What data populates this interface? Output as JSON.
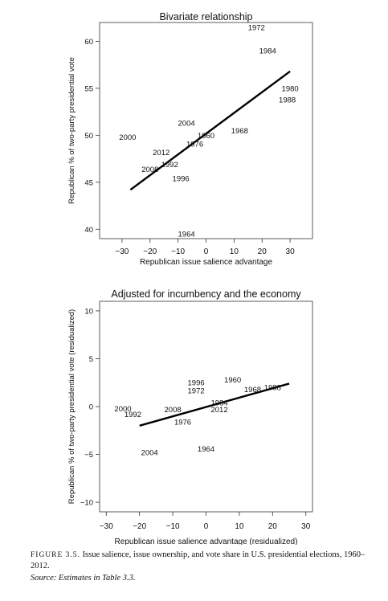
{
  "chart_data": [
    {
      "type": "scatter",
      "title": "Bivariate relationship",
      "xlabel": "Republican issue salience advantage",
      "ylabel": "Republican % of two-party presidential vote",
      "xlim": [
        -38,
        38
      ],
      "ylim": [
        39,
        62
      ],
      "xticks": [
        -30,
        -20,
        -10,
        0,
        10,
        20,
        30
      ],
      "xtick_labels": [
        "−30",
        "−20",
        "−10",
        "0",
        "10",
        "20",
        "30"
      ],
      "yticks": [
        40,
        45,
        50,
        55,
        60
      ],
      "ytick_labels": [
        "40",
        "45",
        "50",
        "55",
        "60"
      ],
      "grid": false,
      "points": [
        {
          "label": "1972",
          "x": 18,
          "y": 61.5
        },
        {
          "label": "1984",
          "x": 22,
          "y": 59.0
        },
        {
          "label": "1980",
          "x": 30,
          "y": 55.0
        },
        {
          "label": "1988",
          "x": 29,
          "y": 53.8
        },
        {
          "label": "2004",
          "x": -7,
          "y": 51.3
        },
        {
          "label": "1968",
          "x": 12,
          "y": 50.5
        },
        {
          "label": "1960",
          "x": 0,
          "y": 50.0
        },
        {
          "label": "1976",
          "x": -4,
          "y": 49.1
        },
        {
          "label": "2000",
          "x": -28,
          "y": 49.8
        },
        {
          "label": "2012",
          "x": -16,
          "y": 48.2
        },
        {
          "label": "1992",
          "x": -13,
          "y": 46.9
        },
        {
          "label": "2008",
          "x": -20,
          "y": 46.4
        },
        {
          "label": "1996",
          "x": -9,
          "y": 45.4
        },
        {
          "label": "1964",
          "x": -7,
          "y": 39.5
        }
      ],
      "fit_line": {
        "x": [
          -27,
          30
        ],
        "y": [
          44.2,
          56.8
        ]
      }
    },
    {
      "type": "scatter",
      "title": "Adjusted for incumbency and the economy",
      "xlabel": "Republican issue salience advantage (residualized)",
      "ylabel": "Republican % of two-party presidential vote (residualized)",
      "xlim": [
        -32,
        32
      ],
      "ylim": [
        -11,
        11
      ],
      "xticks": [
        -30,
        -20,
        -10,
        0,
        10,
        20,
        30
      ],
      "xtick_labels": [
        "−30",
        "−20",
        "−10",
        "0",
        "10",
        "20",
        "30"
      ],
      "yticks": [
        -10,
        -5,
        0,
        5,
        10
      ],
      "ytick_labels": [
        "−10",
        "−5",
        "0",
        "5",
        "10"
      ],
      "grid": false,
      "points": [
        {
          "label": "1996",
          "x": -3,
          "y": 2.5
        },
        {
          "label": "1972",
          "x": -3,
          "y": 1.7
        },
        {
          "label": "1960",
          "x": 8,
          "y": 2.8
        },
        {
          "label": "1968",
          "x": 14,
          "y": 1.8
        },
        {
          "label": "1988",
          "x": 20,
          "y": 2.0
        },
        {
          "label": "1984",
          "x": 4,
          "y": 0.4
        },
        {
          "label": "2012",
          "x": 4,
          "y": -0.3
        },
        {
          "label": "2000",
          "x": -25,
          "y": -0.2
        },
        {
          "label": "1992",
          "x": -22,
          "y": -0.8
        },
        {
          "label": "2008",
          "x": -10,
          "y": -0.3
        },
        {
          "label": "1976",
          "x": -7,
          "y": -1.6
        },
        {
          "label": "2004",
          "x": -17,
          "y": -4.8
        },
        {
          "label": "1964",
          "x": 0,
          "y": -4.4
        }
      ],
      "fit_line": {
        "x": [
          -20,
          25
        ],
        "y": [
          -2.0,
          2.4
        ]
      }
    }
  ],
  "caption": {
    "label": "FIGURE 3.5.",
    "text": "Issue salience, issue ownership, and vote share in U.S. presidential elections, 1960–2012.",
    "source": "Source: Estimates in Table 3.3."
  }
}
